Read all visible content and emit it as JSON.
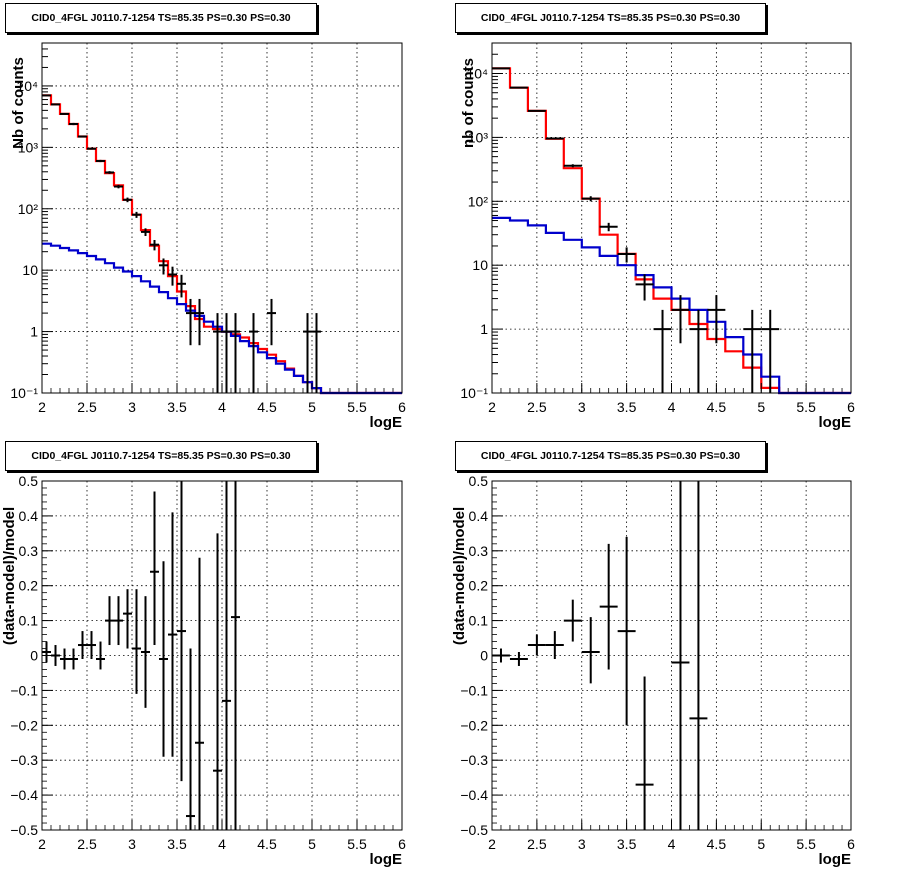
{
  "chart_data": [
    {
      "type": "step-histogram",
      "title": "CID0_4FGL J0110.7-1254 TS=85.35 PS=0.30 PS=0.30",
      "xlabel": "logE",
      "ylabel": "Nb of counts",
      "xlim": [
        2,
        6
      ],
      "ylim": [
        0.1,
        50000
      ],
      "yscale": "log",
      "xticks": [
        2,
        2.5,
        3,
        3.5,
        4,
        4.5,
        5,
        5.5,
        6
      ],
      "xtick_labels": [
        "2",
        "2.5",
        "3",
        "3.5",
        "4",
        "4.5",
        "5",
        "5.5",
        "6"
      ],
      "yticks": [
        0.1,
        1,
        10,
        100,
        1000,
        10000
      ],
      "ytick_labels": [
        "10⁻¹",
        "1",
        "10",
        "10²",
        "10³",
        "10⁴"
      ],
      "grid": true,
      "series": [
        {
          "color": "#ff0000",
          "edges": [
            2,
            2.1,
            2.2,
            2.3,
            2.4,
            2.5,
            2.6,
            2.7,
            2.8,
            2.9,
            3.0,
            3.1,
            3.2,
            3.3,
            3.4,
            3.5,
            3.6,
            3.7,
            3.8,
            3.9,
            4.0,
            4.1,
            4.2,
            4.3,
            4.4,
            4.5,
            4.6,
            4.7,
            4.8,
            4.9,
            5.0,
            5.1,
            5.2,
            5.3,
            5.4,
            5.5,
            5.6,
            5.7,
            5.8,
            5.9,
            6.0
          ],
          "values": [
            7000,
            5000,
            3500,
            2400,
            1500,
            950,
            600,
            380,
            240,
            140,
            80,
            45,
            25,
            14,
            8,
            4.5,
            2.6,
            1.6,
            1.2,
            1.1,
            1.0,
            0.9,
            0.8,
            0.65,
            0.52,
            0.42,
            0.33,
            0.25,
            0.19,
            0.15,
            0.12,
            0.1,
            0.1,
            0.1,
            0.1,
            0.1,
            0.1,
            0.1,
            0.1,
            0.1
          ]
        },
        {
          "color": "#0000cc",
          "edges": [
            2,
            2.1,
            2.2,
            2.3,
            2.4,
            2.5,
            2.6,
            2.7,
            2.8,
            2.9,
            3.0,
            3.1,
            3.2,
            3.3,
            3.4,
            3.5,
            3.6,
            3.7,
            3.8,
            3.9,
            4.0,
            4.1,
            4.2,
            4.3,
            4.4,
            4.5,
            4.6,
            4.7,
            4.8,
            4.9,
            5.0,
            5.1,
            5.2,
            5.3,
            5.4,
            5.5,
            5.6,
            5.7,
            5.8,
            5.9,
            6.0
          ],
          "values": [
            27,
            25,
            23,
            21,
            19,
            17,
            15,
            13,
            11,
            9.5,
            8,
            6.6,
            5.4,
            4.4,
            3.5,
            2.8,
            2.2,
            1.8,
            1.45,
            1.2,
            1.0,
            0.85,
            0.7,
            0.58,
            0.46,
            0.37,
            0.3,
            0.24,
            0.19,
            0.15,
            0.12,
            0.1,
            0.1,
            0.1,
            0.1,
            0.1,
            0.1,
            0.1,
            0.1,
            0.1
          ]
        }
      ],
      "points": [
        {
          "x": 2.05,
          "y": 7000,
          "xerr": 0.05,
          "ylo": 6900,
          "yhi": 7100
        },
        {
          "x": 2.15,
          "y": 5000,
          "xerr": 0.05,
          "ylo": 4900,
          "yhi": 5100
        },
        {
          "x": 2.25,
          "y": 3500,
          "xerr": 0.05,
          "ylo": 3400,
          "yhi": 3600
        },
        {
          "x": 2.35,
          "y": 2400,
          "xerr": 0.05,
          "ylo": 2300,
          "yhi": 2500
        },
        {
          "x": 2.45,
          "y": 1500,
          "xerr": 0.05,
          "ylo": 1450,
          "yhi": 1550
        },
        {
          "x": 2.55,
          "y": 950,
          "xerr": 0.05,
          "ylo": 920,
          "yhi": 980
        },
        {
          "x": 2.65,
          "y": 600,
          "xerr": 0.05,
          "ylo": 575,
          "yhi": 625
        },
        {
          "x": 2.75,
          "y": 390,
          "xerr": 0.05,
          "ylo": 370,
          "yhi": 410
        },
        {
          "x": 2.85,
          "y": 230,
          "xerr": 0.05,
          "ylo": 215,
          "yhi": 245
        },
        {
          "x": 2.95,
          "y": 140,
          "xerr": 0.05,
          "ylo": 128,
          "yhi": 152
        },
        {
          "x": 3.05,
          "y": 80,
          "xerr": 0.05,
          "ylo": 71,
          "yhi": 89
        },
        {
          "x": 3.15,
          "y": 42,
          "xerr": 0.05,
          "ylo": 36,
          "yhi": 48
        },
        {
          "x": 3.25,
          "y": 26,
          "xerr": 0.05,
          "ylo": 21,
          "yhi": 31
        },
        {
          "x": 3.35,
          "y": 12,
          "xerr": 0.05,
          "ylo": 8.5,
          "yhi": 15.5
        },
        {
          "x": 3.45,
          "y": 8.5,
          "xerr": 0.05,
          "ylo": 5.6,
          "yhi": 11.4
        },
        {
          "x": 3.55,
          "y": 6,
          "xerr": 0.05,
          "ylo": 3.6,
          "yhi": 8.4
        },
        {
          "x": 3.65,
          "y": 2,
          "xerr": 0.05,
          "ylo": 0.6,
          "yhi": 3.4
        },
        {
          "x": 3.75,
          "y": 2,
          "xerr": 0.05,
          "ylo": 0.6,
          "yhi": 3.4
        },
        {
          "x": 3.95,
          "y": 1,
          "xerr": 0.05,
          "ylo": 0.1,
          "yhi": 2
        },
        {
          "x": 4.05,
          "y": 1,
          "xerr": 0.05,
          "ylo": 0.1,
          "yhi": 2
        },
        {
          "x": 4.15,
          "y": 1,
          "xerr": 0.05,
          "ylo": 0.1,
          "yhi": 2
        },
        {
          "x": 4.35,
          "y": 1,
          "xerr": 0.05,
          "ylo": 0.1,
          "yhi": 2
        },
        {
          "x": 4.55,
          "y": 2,
          "xerr": 0.05,
          "ylo": 0.6,
          "yhi": 3.4
        },
        {
          "x": 4.95,
          "y": 1,
          "xerr": 0.05,
          "ylo": 0.1,
          "yhi": 2
        },
        {
          "x": 5.05,
          "y": 1,
          "xerr": 0.05,
          "ylo": 0.1,
          "yhi": 2
        }
      ]
    },
    {
      "type": "step-histogram",
      "title": "CID0_4FGL J0110.7-1254 TS=85.35 PS=0.30 PS=0.30",
      "xlabel": "logE",
      "ylabel": "nb of counts",
      "xlim": [
        2,
        6
      ],
      "ylim": [
        0.1,
        30000
      ],
      "yscale": "log",
      "xticks": [
        2,
        2.5,
        3,
        3.5,
        4,
        4.5,
        5,
        5.5,
        6
      ],
      "xtick_labels": [
        "2",
        "2.5",
        "3",
        "3.5",
        "4",
        "4.5",
        "5",
        "5.5",
        "6"
      ],
      "yticks": [
        0.1,
        1,
        10,
        100,
        1000,
        10000
      ],
      "ytick_labels": [
        "10⁻¹",
        "1",
        "10",
        "10²",
        "10³",
        "10⁴"
      ],
      "grid": true,
      "series": [
        {
          "color": "#ff0000",
          "edges": [
            2,
            2.2,
            2.4,
            2.6,
            2.8,
            3.0,
            3.2,
            3.4,
            3.6,
            3.8,
            4.0,
            4.2,
            4.4,
            4.6,
            4.8,
            5.0,
            5.2,
            5.4,
            5.6,
            5.8,
            6.0
          ],
          "values": [
            12000,
            6000,
            2600,
            950,
            330,
            110,
            30,
            15,
            6,
            3,
            2,
            1.2,
            0.7,
            0.45,
            0.25,
            0.12,
            0.1,
            0.1,
            0.1,
            0.1
          ]
        },
        {
          "color": "#0000cc",
          "edges": [
            2,
            2.2,
            2.4,
            2.6,
            2.8,
            3.0,
            3.2,
            3.4,
            3.6,
            3.8,
            4.0,
            4.2,
            4.4,
            4.6,
            4.8,
            5.0,
            5.2,
            5.4,
            5.6,
            5.8,
            6.0
          ],
          "values": [
            55,
            50,
            42,
            32,
            25,
            19,
            14,
            10,
            7,
            4.5,
            3,
            2,
            1.3,
            0.75,
            0.4,
            0.18,
            0.1,
            0.1,
            0.1,
            0.1
          ]
        }
      ],
      "points": [
        {
          "x": 2.1,
          "y": 12000,
          "xerr": 0.1,
          "ylo": 11800,
          "yhi": 12200
        },
        {
          "x": 2.3,
          "y": 6000,
          "xerr": 0.1,
          "ylo": 5900,
          "yhi": 6100
        },
        {
          "x": 2.5,
          "y": 2600,
          "xerr": 0.1,
          "ylo": 2550,
          "yhi": 2650
        },
        {
          "x": 2.7,
          "y": 960,
          "xerr": 0.1,
          "ylo": 930,
          "yhi": 990
        },
        {
          "x": 2.9,
          "y": 360,
          "xerr": 0.1,
          "ylo": 340,
          "yhi": 380
        },
        {
          "x": 3.1,
          "y": 110,
          "xerr": 0.1,
          "ylo": 100,
          "yhi": 120
        },
        {
          "x": 3.3,
          "y": 40,
          "xerr": 0.1,
          "ylo": 34,
          "yhi": 46
        },
        {
          "x": 3.5,
          "y": 15,
          "xerr": 0.1,
          "ylo": 11,
          "yhi": 19
        },
        {
          "x": 3.7,
          "y": 5,
          "xerr": 0.1,
          "ylo": 2.8,
          "yhi": 7.2
        },
        {
          "x": 3.9,
          "y": 1,
          "xerr": 0.1,
          "ylo": 0.1,
          "yhi": 2
        },
        {
          "x": 4.1,
          "y": 2,
          "xerr": 0.1,
          "ylo": 0.6,
          "yhi": 3.4
        },
        {
          "x": 4.3,
          "y": 1,
          "xerr": 0.1,
          "ylo": 0.1,
          "yhi": 2
        },
        {
          "x": 4.5,
          "y": 2,
          "xerr": 0.1,
          "ylo": 0.6,
          "yhi": 3.4
        },
        {
          "x": 4.9,
          "y": 1,
          "xerr": 0.1,
          "ylo": 0.1,
          "yhi": 2
        },
        {
          "x": 5.1,
          "y": 1,
          "xerr": 0.1,
          "ylo": 0.1,
          "yhi": 2
        }
      ]
    },
    {
      "type": "errorbar",
      "title": "CID0_4FGL J0110.7-1254 TS=85.35 PS=0.30 PS=0.30",
      "xlabel": "logE",
      "ylabel": "(data-model)/model",
      "xlim": [
        2,
        6
      ],
      "ylim": [
        -0.5,
        0.5
      ],
      "yscale": "linear",
      "xticks": [
        2,
        2.5,
        3,
        3.5,
        4,
        4.5,
        5,
        5.5,
        6
      ],
      "xtick_labels": [
        "2",
        "2.5",
        "3",
        "3.5",
        "4",
        "4.5",
        "5",
        "5.5",
        "6"
      ],
      "yticks": [
        -0.5,
        -0.4,
        -0.3,
        -0.2,
        -0.1,
        0,
        0.1,
        0.2,
        0.3,
        0.4,
        0.5
      ],
      "ytick_labels": [
        "−0.5",
        "−0.4",
        "−0.3",
        "−0.2",
        "−0.1",
        "0",
        "0.1",
        "0.2",
        "0.3",
        "0.4",
        "0.5"
      ],
      "grid": true,
      "series": [],
      "points": [
        {
          "x": 2.05,
          "y": 0.01,
          "xerr": 0.05,
          "ylo": -0.02,
          "yhi": 0.04
        },
        {
          "x": 2.15,
          "y": 0.0,
          "xerr": 0.05,
          "ylo": -0.03,
          "yhi": 0.03
        },
        {
          "x": 2.25,
          "y": -0.01,
          "xerr": 0.05,
          "ylo": -0.04,
          "yhi": 0.02
        },
        {
          "x": 2.35,
          "y": -0.01,
          "xerr": 0.05,
          "ylo": -0.04,
          "yhi": 0.02
        },
        {
          "x": 2.45,
          "y": 0.03,
          "xerr": 0.05,
          "ylo": -0.01,
          "yhi": 0.07
        },
        {
          "x": 2.55,
          "y": 0.03,
          "xerr": 0.05,
          "ylo": -0.01,
          "yhi": 0.07
        },
        {
          "x": 2.65,
          "y": -0.01,
          "xerr": 0.05,
          "ylo": -0.04,
          "yhi": 0.04
        },
        {
          "x": 2.75,
          "y": 0.1,
          "xerr": 0.05,
          "ylo": 0.03,
          "yhi": 0.17
        },
        {
          "x": 2.85,
          "y": 0.1,
          "xerr": 0.05,
          "ylo": 0.03,
          "yhi": 0.17
        },
        {
          "x": 2.95,
          "y": 0.12,
          "xerr": 0.05,
          "ylo": 0.02,
          "yhi": 0.19
        },
        {
          "x": 3.05,
          "y": 0.02,
          "xerr": 0.05,
          "ylo": -0.11,
          "yhi": 0.19
        },
        {
          "x": 3.15,
          "y": 0.01,
          "xerr": 0.05,
          "ylo": -0.15,
          "yhi": 0.17
        },
        {
          "x": 3.25,
          "y": 0.24,
          "xerr": 0.05,
          "ylo": 0.03,
          "yhi": 0.47
        },
        {
          "x": 3.35,
          "y": -0.01,
          "xerr": 0.05,
          "ylo": -0.29,
          "yhi": 0.27
        },
        {
          "x": 3.45,
          "y": 0.06,
          "xerr": 0.05,
          "ylo": -0.29,
          "yhi": 0.41
        },
        {
          "x": 3.55,
          "y": 0.07,
          "xerr": 0.05,
          "ylo": -0.36,
          "yhi": 0.5
        },
        {
          "x": 3.65,
          "y": -0.46,
          "xerr": 0.05,
          "ylo": -0.5,
          "yhi": 0.02
        },
        {
          "x": 3.75,
          "y": -0.25,
          "xerr": 0.05,
          "ylo": -0.5,
          "yhi": 0.28
        },
        {
          "x": 3.95,
          "y": -0.33,
          "xerr": 0.05,
          "ylo": -0.5,
          "yhi": 0.35
        },
        {
          "x": 4.05,
          "y": -0.13,
          "xerr": 0.05,
          "ylo": -0.5,
          "yhi": 0.5
        },
        {
          "x": 4.15,
          "y": 0.11,
          "xerr": 0.05,
          "ylo": -0.5,
          "yhi": 0.5
        }
      ]
    },
    {
      "type": "errorbar",
      "title": "CID0_4FGL J0110.7-1254 TS=85.35 PS=0.30 PS=0.30",
      "xlabel": "logE",
      "ylabel": "(data-model)/model",
      "xlim": [
        2,
        6
      ],
      "ylim": [
        -0.5,
        0.5
      ],
      "yscale": "linear",
      "xticks": [
        2,
        2.5,
        3,
        3.5,
        4,
        4.5,
        5,
        5.5,
        6
      ],
      "xtick_labels": [
        "2",
        "2.5",
        "3",
        "3.5",
        "4",
        "4.5",
        "5",
        "5.5",
        "6"
      ],
      "yticks": [
        -0.5,
        -0.4,
        -0.3,
        -0.2,
        -0.1,
        0,
        0.1,
        0.2,
        0.3,
        0.4,
        0.5
      ],
      "ytick_labels": [
        "−0.5",
        "−0.4",
        "−0.3",
        "−0.2",
        "−0.1",
        "0",
        "0.1",
        "0.2",
        "0.3",
        "0.4",
        "0.5"
      ],
      "grid": true,
      "series": [],
      "points": [
        {
          "x": 2.1,
          "y": 0.0,
          "xerr": 0.1,
          "ylo": -0.02,
          "yhi": 0.02
        },
        {
          "x": 2.3,
          "y": -0.01,
          "xerr": 0.1,
          "ylo": -0.03,
          "yhi": 0.01
        },
        {
          "x": 2.5,
          "y": 0.03,
          "xerr": 0.1,
          "ylo": 0.0,
          "yhi": 0.06
        },
        {
          "x": 2.7,
          "y": 0.03,
          "xerr": 0.1,
          "ylo": -0.01,
          "yhi": 0.07
        },
        {
          "x": 2.9,
          "y": 0.1,
          "xerr": 0.1,
          "ylo": 0.04,
          "yhi": 0.16
        },
        {
          "x": 3.1,
          "y": 0.01,
          "xerr": 0.1,
          "ylo": -0.08,
          "yhi": 0.11
        },
        {
          "x": 3.3,
          "y": 0.14,
          "xerr": 0.1,
          "ylo": -0.04,
          "yhi": 0.32
        },
        {
          "x": 3.5,
          "y": 0.07,
          "xerr": 0.1,
          "ylo": -0.2,
          "yhi": 0.34
        },
        {
          "x": 3.7,
          "y": -0.37,
          "xerr": 0.1,
          "ylo": -0.5,
          "yhi": -0.06
        },
        {
          "x": 4.1,
          "y": -0.02,
          "xerr": 0.1,
          "ylo": -0.5,
          "yhi": 0.5
        },
        {
          "x": 4.3,
          "y": -0.18,
          "xerr": 0.1,
          "ylo": -0.5,
          "yhi": 0.5
        }
      ]
    }
  ]
}
